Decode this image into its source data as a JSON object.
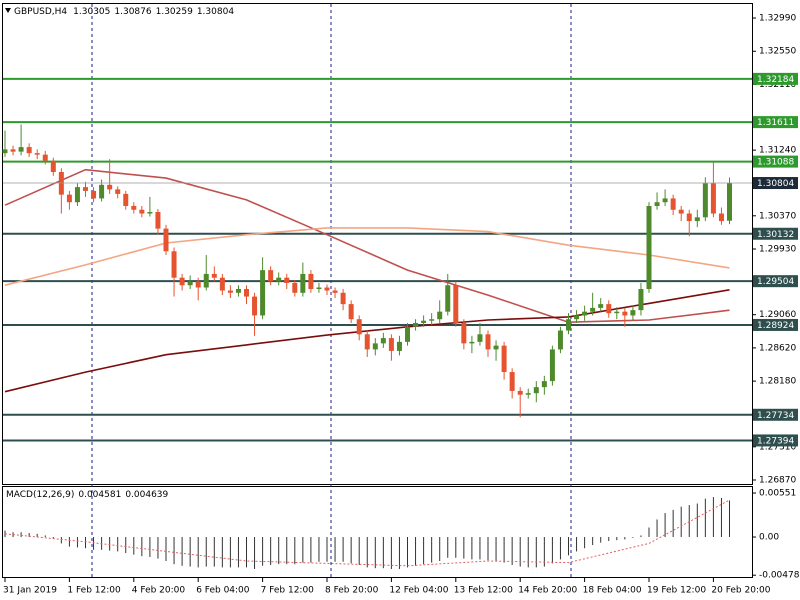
{
  "chart_data": {
    "type": "candlestick",
    "symbol": "GBPUSD,H4",
    "up_color": "#4e8a2c",
    "down_color": "#e5532f",
    "open": [
      1.312,
      1.3125,
      1.3122,
      1.3128,
      1.312,
      1.3118,
      1.311,
      1.3095,
      1.3065,
      1.3055,
      1.3075,
      1.307,
      1.306,
      1.3078,
      1.3072,
      1.3066,
      1.305,
      1.3045,
      1.304,
      1.3042,
      1.302,
      1.299,
      1.2955,
      1.2945,
      1.295,
      1.2942,
      1.296,
      1.2955,
      1.2938,
      1.2935,
      1.294,
      1.293,
      1.2905,
      1.2965,
      1.295,
      1.2955,
      1.2948,
      1.2935,
      1.296,
      1.294,
      1.2942,
      1.2938,
      1.2935,
      1.292,
      1.29,
      1.288,
      1.286,
      1.2868,
      1.2875,
      1.2858,
      1.287,
      1.289,
      1.2895,
      1.2898,
      1.29,
      1.291,
      1.2945,
      1.2895,
      1.2868,
      1.287,
      1.288,
      1.286,
      1.2865,
      1.283,
      1.2805,
      1.28,
      1.2802,
      1.281,
      1.2818,
      1.286,
      1.2885,
      1.29,
      1.2905,
      1.291,
      1.2915,
      1.292,
      1.2908,
      1.291,
      1.2905,
      1.2912,
      1.294,
      1.305,
      1.3055,
      1.306,
      1.3045,
      1.304,
      1.303,
      1.3035,
      1.308,
      1.304,
      1.30305
    ],
    "high": [
      1.315,
      1.313,
      1.3158,
      1.3133,
      1.3125,
      1.3123,
      1.3114,
      1.31,
      1.307,
      1.308,
      1.3082,
      1.3075,
      1.3085,
      1.3112,
      1.3076,
      1.307,
      1.3055,
      1.305,
      1.3062,
      1.3046,
      1.3025,
      1.2995,
      1.296,
      1.2958,
      1.2955,
      1.2985,
      1.297,
      1.296,
      1.2945,
      1.2945,
      1.2945,
      1.2935,
      1.2982,
      1.297,
      1.2962,
      1.296,
      1.2952,
      1.2975,
      1.2965,
      1.2948,
      1.2946,
      1.2942,
      1.294,
      1.2925,
      1.2905,
      1.2885,
      1.2875,
      1.2882,
      1.288,
      1.2878,
      1.2895,
      1.29,
      1.2905,
      1.2908,
      1.2925,
      1.296,
      1.295,
      1.29,
      1.2878,
      1.2895,
      1.2885,
      1.2872,
      1.287,
      1.2835,
      1.281,
      1.2808,
      1.2818,
      1.2825,
      1.2865,
      1.289,
      1.2908,
      1.2912,
      1.2918,
      1.2935,
      1.2928,
      1.2925,
      1.2916,
      1.2915,
      1.2918,
      1.2948,
      1.3055,
      1.3068,
      1.3072,
      1.3065,
      1.305,
      1.3045,
      1.3045,
      1.3088,
      1.3108,
      1.3048,
      1.30876
    ],
    "low": [
      1.3115,
      1.3117,
      1.3117,
      1.3115,
      1.3112,
      1.3105,
      1.309,
      1.304,
      1.3045,
      1.305,
      1.3062,
      1.3055,
      1.3056,
      1.3066,
      1.306,
      1.3045,
      1.304,
      1.3035,
      1.3036,
      1.3012,
      1.2985,
      1.293,
      1.2938,
      1.294,
      1.2925,
      1.2938,
      1.295,
      1.2932,
      1.2928,
      1.293,
      1.292,
      1.2878,
      1.29,
      1.2945,
      1.2945,
      1.294,
      1.293,
      1.293,
      1.2935,
      1.2935,
      1.2932,
      1.2928,
      1.2912,
      1.2895,
      1.2872,
      1.285,
      1.2852,
      1.2862,
      1.2845,
      1.2852,
      1.2865,
      1.2885,
      1.289,
      1.2892,
      1.2895,
      1.2905,
      1.289,
      1.286,
      1.2855,
      1.2865,
      1.285,
      1.2845,
      1.282,
      1.2795,
      1.277,
      1.2795,
      1.279,
      1.28,
      1.2812,
      1.2855,
      1.288,
      1.2895,
      1.2898,
      1.2905,
      1.291,
      1.2902,
      1.29,
      1.289,
      1.2898,
      1.2905,
      1.2935,
      1.3045,
      1.305,
      1.3038,
      1.303,
      1.301,
      1.3022,
      1.303,
      1.3035,
      1.3025,
      1.30259
    ],
    "close": [
      1.3125,
      1.3122,
      1.3128,
      1.312,
      1.3118,
      1.311,
      1.3095,
      1.3065,
      1.3055,
      1.3075,
      1.307,
      1.306,
      1.3078,
      1.3072,
      1.3066,
      1.305,
      1.3045,
      1.304,
      1.3042,
      1.302,
      1.299,
      1.2955,
      1.2945,
      1.295,
      1.2942,
      1.296,
      1.2955,
      1.2938,
      1.2935,
      1.294,
      1.293,
      1.2905,
      1.2965,
      1.295,
      1.2955,
      1.2948,
      1.2935,
      1.296,
      1.294,
      1.2942,
      1.2938,
      1.2935,
      1.292,
      1.29,
      1.288,
      1.286,
      1.2868,
      1.2875,
      1.2858,
      1.287,
      1.289,
      1.2895,
      1.2898,
      1.29,
      1.291,
      1.2945,
      1.2895,
      1.2868,
      1.287,
      1.288,
      1.286,
      1.2865,
      1.283,
      1.2805,
      1.28,
      1.2802,
      1.281,
      1.2818,
      1.286,
      1.2885,
      1.29,
      1.2905,
      1.291,
      1.2915,
      1.292,
      1.2908,
      1.291,
      1.2905,
      1.2912,
      1.294,
      1.305,
      1.3055,
      1.306,
      1.3045,
      1.304,
      1.303,
      1.3035,
      1.308,
      1.304,
      1.303,
      1.30804
    ],
    "ylim": [
      1.26817,
      1.33189
    ],
    "yticks": [
      {
        "value": 1.3299,
        "label": "1.32990"
      },
      {
        "value": 1.3255,
        "label": "1.32550"
      },
      {
        "value": 1.3211,
        "label": "1.32110"
      },
      {
        "value": 1.3124,
        "label": "1.31240"
      },
      {
        "value": 1.3037,
        "label": "1.30370"
      },
      {
        "value": 1.2993,
        "label": "1.29930"
      },
      {
        "value": 1.2906,
        "label": "1.29060"
      },
      {
        "value": 1.2862,
        "label": "1.28620"
      },
      {
        "value": 1.2818,
        "label": "1.28180"
      },
      {
        "value": 1.2731,
        "label": "1.27310"
      },
      {
        "value": 1.2687,
        "label": "1.26870"
      }
    ],
    "xticks": [
      {
        "value": 0,
        "label": "31 Jan 2019"
      },
      {
        "value": 8,
        "label": "1 Feb 12:00"
      },
      {
        "value": 16,
        "label": "4 Feb 20:00"
      },
      {
        "value": 24,
        "label": "6 Feb 04:00"
      },
      {
        "value": 32,
        "label": "7 Feb 12:00"
      },
      {
        "value": 40,
        "label": "8 Feb 20:00"
      },
      {
        "value": 48,
        "label": "12 Feb 04:00"
      },
      {
        "value": 56,
        "label": "13 Feb 12:00"
      },
      {
        "value": 64,
        "label": "14 Feb 20:00"
      },
      {
        "value": 72,
        "label": "18 Feb 04:00"
      },
      {
        "value": 80,
        "label": "19 Feb 12:00"
      },
      {
        "value": 88,
        "label": "20 Feb 20:00"
      }
    ],
    "moving_averages": [
      {
        "color": "#c0504d",
        "x": [
          0,
          10,
          20,
          30,
          40,
          50,
          60,
          70,
          80,
          90
        ],
        "values": [
          1.3051,
          1.3098,
          1.3087,
          1.3058,
          1.3012,
          1.2965,
          1.2932,
          1.2896,
          1.2899,
          1.2912
        ]
      },
      {
        "color": "#f4a582",
        "x": [
          0,
          10,
          20,
          30,
          40,
          50,
          60,
          70,
          80,
          90
        ],
        "values": [
          1.2945,
          1.2972,
          1.3001,
          1.3012,
          1.3021,
          1.3021,
          1.3016,
          1.2998,
          1.2985,
          1.2968
        ]
      },
      {
        "color": "#7b0c0c",
        "x": [
          0,
          10,
          20,
          30,
          40,
          50,
          60,
          70,
          80,
          90
        ],
        "values": [
          1.2804,
          1.283,
          1.2853,
          1.2866,
          1.2879,
          1.289,
          1.2899,
          1.2903,
          1.2921,
          1.2939
        ]
      }
    ],
    "levels": [
      {
        "value": 1.32184,
        "color": "#2e9a2e"
      },
      {
        "value": 1.31611,
        "color": "#2e9a2e"
      },
      {
        "value": 1.31088,
        "color": "#2e9a2e"
      },
      {
        "value": 1.30132,
        "color": "#2f4f4f"
      },
      {
        "value": 1.29504,
        "color": "#2f4f4f"
      },
      {
        "value": 1.28924,
        "color": "#2f4f4f"
      },
      {
        "value": 1.27734,
        "color": "#2f4f4f"
      },
      {
        "value": 1.27394,
        "color": "#2f4f4f"
      }
    ],
    "macd": {
      "name": "MACD(12,26,9)",
      "histogram": [
        0.0008,
        0.0006,
        0.0006,
        0.0005,
        0.0004,
        0.0002,
        -0.0002,
        -0.0008,
        -0.0012,
        -0.0013,
        -0.0014,
        -0.0016,
        -0.0016,
        -0.0017,
        -0.0018,
        -0.002,
        -0.0022,
        -0.0024,
        -0.0025,
        -0.0027,
        -0.003,
        -0.0034,
        -0.0036,
        -0.0037,
        -0.0038,
        -0.0037,
        -0.0037,
        -0.0038,
        -0.0038,
        -0.0038,
        -0.0038,
        -0.004,
        -0.0036,
        -0.0035,
        -0.0034,
        -0.0034,
        -0.0034,
        -0.0032,
        -0.0032,
        -0.0031,
        -0.0031,
        -0.0031,
        -0.0031,
        -0.0033,
        -0.0035,
        -0.0038,
        -0.0039,
        -0.0039,
        -0.004,
        -0.004,
        -0.0038,
        -0.0036,
        -0.0034,
        -0.0032,
        -0.003,
        -0.0026,
        -0.0026,
        -0.0027,
        -0.0028,
        -0.0028,
        -0.0029,
        -0.003,
        -0.0032,
        -0.0035,
        -0.0037,
        -0.0038,
        -0.0038,
        -0.0037,
        -0.0033,
        -0.0028,
        -0.0023,
        -0.0018,
        -0.0014,
        -0.001,
        -0.0007,
        -0.0005,
        -0.0004,
        -0.0003,
        -0.0001,
        0.0002,
        0.0012,
        0.0022,
        0.003,
        0.0034,
        0.0038,
        0.004,
        0.0042,
        0.0048,
        0.005,
        0.0049,
        0.004581
      ],
      "signal_x": [
        0,
        10,
        20,
        30,
        40,
        50,
        60,
        70,
        80,
        90
      ],
      "signal": [
        0.0004,
        -0.0006,
        -0.0018,
        -0.003,
        -0.0033,
        -0.0036,
        -0.003,
        -0.0032,
        -0.0008,
        0.004639
      ],
      "signal_color": "#e06060",
      "ylim": [
        -0.00513,
        0.00639
      ],
      "yticks": [
        0.00551,
        {
          "value": 0,
          "label": "0.00"
        },
        -0.00478
      ]
    }
  }
}
